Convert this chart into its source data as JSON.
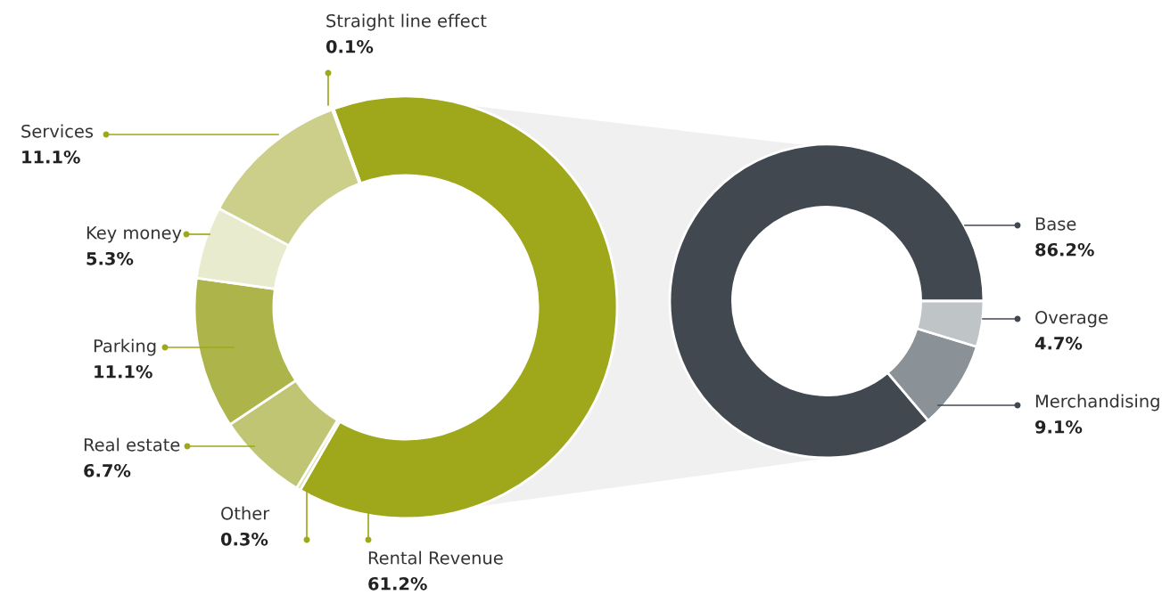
{
  "chart_data": [
    {
      "type": "donut",
      "categories": [
        "Rental Revenue",
        "Other",
        "Real estate",
        "Parking",
        "Key money",
        "Services",
        "Straight line effect"
      ],
      "values": [
        61.2,
        0.3,
        6.7,
        11.1,
        5.3,
        11.1,
        0.1
      ],
      "value_labels": [
        "61.2%",
        "0.3%",
        "6.7%",
        "11.1%",
        "5.3%",
        "11.1%",
        "0.1%"
      ],
      "colors": [
        "#9ea81a",
        "#d9ddb0",
        "#c0c574",
        "#adb54a",
        "#e8ebcd",
        "#cbcf8a",
        "#e0e3b8"
      ]
    },
    {
      "type": "donut",
      "categories": [
        "Base",
        "Merchandising",
        "Overage"
      ],
      "values": [
        86.2,
        9.1,
        4.7
      ],
      "value_labels": [
        "86.2%",
        "9.1%",
        "4.7%"
      ],
      "colors": [
        "#41484f",
        "#8a9197",
        "#bfc4c7"
      ]
    }
  ]
}
